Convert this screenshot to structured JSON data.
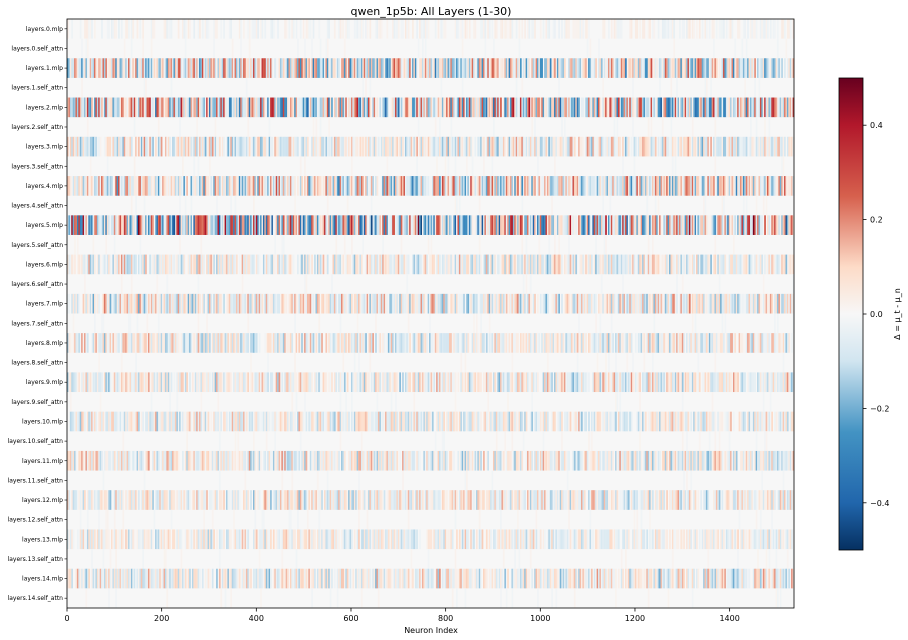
{
  "chart_data": {
    "type": "heatmap",
    "title": "qwen_1p5b: All Layers (1-30)",
    "xlabel": "Neuron Index",
    "ylabel": "",
    "xlim": [
      0,
      1536
    ],
    "x_ticks": [
      0,
      200,
      400,
      600,
      800,
      1000,
      1200,
      1400
    ],
    "rows": [
      "layers.0.mlp",
      "layers.0.self_attn",
      "layers.1.mlp",
      "layers.1.self_attn",
      "layers.2.mlp",
      "layers.2.self_attn",
      "layers.3.mlp",
      "layers.3.self_attn",
      "layers.4.mlp",
      "layers.4.self_attn",
      "layers.5.mlp",
      "layers.5.self_attn",
      "layers.6.mlp",
      "layers.6.self_attn",
      "layers.7.mlp",
      "layers.7.self_attn",
      "layers.8.mlp",
      "layers.8.self_attn",
      "layers.9.mlp",
      "layers.9.self_attn",
      "layers.10.mlp",
      "layers.10.self_attn",
      "layers.11.mlp",
      "layers.11.self_attn",
      "layers.12.mlp",
      "layers.12.self_attn",
      "layers.13.mlp",
      "layers.13.self_attn",
      "layers.14.mlp",
      "layers.14.self_attn"
    ],
    "row_intensity": [
      0.1,
      0.04,
      0.7,
      0.04,
      0.85,
      0.04,
      0.45,
      0.04,
      0.65,
      0.04,
      1.0,
      0.04,
      0.4,
      0.04,
      0.45,
      0.04,
      0.4,
      0.04,
      0.4,
      0.04,
      0.35,
      0.04,
      0.42,
      0.04,
      0.38,
      0.04,
      0.3,
      0.04,
      0.42,
      0.04
    ],
    "colormap": "RdBu_r",
    "colorbar": {
      "label": "Δ = μ_t - μ_n",
      "vmin": -0.5,
      "vmax": 0.5,
      "ticks": [
        0.4,
        0.2,
        0.0,
        -0.2,
        -0.4
      ],
      "tick_labels": [
        "0.4",
        "0.2",
        "0.0",
        "−0.2",
        "−0.4"
      ]
    },
    "grid": false
  }
}
